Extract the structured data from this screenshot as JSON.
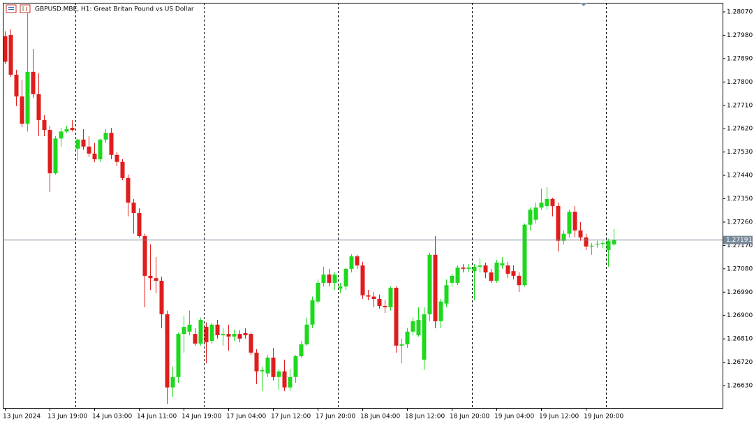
{
  "chart_data": {
    "type": "candlestick",
    "title": "GBPUSD.MBE, H1:  Great Britan Pound vs US Dollar",
    "categories": [
      "13 Jun 2024",
      null,
      null,
      null,
      null,
      null,
      null,
      null,
      "13 Jun 19:00",
      null,
      null,
      null,
      null,
      null,
      null,
      null,
      "14 Jun 03:00",
      null,
      null,
      null,
      null,
      null,
      null,
      null,
      "14 Jun 11:00",
      null,
      null,
      null,
      null,
      null,
      null,
      null,
      "14 Jun 19:00",
      null,
      null,
      null,
      null,
      null,
      null,
      null,
      "17 Jun 04:00",
      null,
      null,
      null,
      null,
      null,
      null,
      null,
      "17 Jun 12:00",
      null,
      null,
      null,
      null,
      null,
      null,
      null,
      "17 Jun 20:00",
      null,
      null,
      null,
      null,
      null,
      null,
      null,
      "18 Jun 04:00",
      null,
      null,
      null,
      null,
      null,
      null,
      null,
      "18 Jun 12:00",
      null,
      null,
      null,
      null,
      null,
      null,
      null,
      "18 Jun 20:00",
      null,
      null,
      null,
      null,
      null,
      null,
      null,
      "19 Jun 04:00",
      null,
      null,
      null,
      null,
      null,
      null,
      null,
      "19 Jun 12:00",
      null,
      null,
      null,
      null,
      null,
      null,
      null,
      "19 Jun 20:00",
      null,
      null,
      null,
      null,
      null
    ],
    "open": [
      1.27976,
      1.27981,
      1.27828,
      1.27744,
      1.27639,
      1.27839,
      1.27753,
      1.27653,
      1.27615,
      1.27448,
      1.27582,
      1.27609,
      1.27623,
      1.27543,
      1.27578,
      1.27551,
      1.27524,
      1.27502,
      1.27578,
      1.27604,
      1.27519,
      1.27492,
      1.2743,
      1.27335,
      1.27295,
      1.27206,
      1.27053,
      1.27044,
      1.27034,
      1.26905,
      1.26623,
      1.26663,
      1.26829,
      1.26838,
      1.26829,
      1.26792,
      1.26856,
      1.26802,
      1.26865,
      1.26824,
      1.26829,
      1.26819,
      1.26829,
      1.26832,
      1.26829,
      1.26757,
      1.26685,
      1.26677,
      1.26738,
      1.26663,
      1.26685,
      1.26623,
      1.26663,
      1.26743,
      1.26789,
      1.26865,
      1.26954,
      1.27026,
      1.27058,
      1.27026,
      1.27004,
      1.27012,
      1.2708,
      1.27128,
      1.27093,
      1.26978,
      1.26973,
      1.26964,
      1.26937,
      1.26932,
      1.27007,
      1.26784,
      1.26789,
      1.26838,
      1.26824,
      1.2673,
      1.26905,
      1.27134,
      1.26878,
      1.26946,
      1.27026,
      1.27026,
      1.27085,
      1.2708,
      1.27071,
      1.27088,
      1.27093,
      1.27066,
      1.27034,
      1.27093,
      1.27093,
      1.27071,
      1.27053,
      1.27017,
      1.2725,
      1.27269,
      1.27316,
      1.27322,
      1.27349,
      1.27322,
      1.27188,
      1.27215,
      1.273,
      1.27228,
      1.27201,
      1.27166,
      1.27174,
      1.27177,
      1.27152,
      1.27174
    ],
    "high": [
      1.27995,
      1.28003,
      1.27847,
      1.27807,
      1.28067,
      1.27927,
      1.27834,
      1.27672,
      1.27631,
      1.27591,
      1.27623,
      1.27631,
      1.27653,
      1.27582,
      1.27618,
      1.27591,
      1.27565,
      1.27582,
      1.27618,
      1.27623,
      1.27529,
      1.27502,
      1.27443,
      1.27349,
      1.27313,
      1.27215,
      1.27174,
      1.27125,
      1.2705,
      1.26919,
      1.26703,
      1.26835,
      1.269,
      1.26919,
      1.26851,
      1.26892,
      1.26873,
      1.26873,
      1.26883,
      1.26851,
      1.26865,
      1.26846,
      1.26843,
      1.26851,
      1.26835,
      1.2677,
      1.26703,
      1.26748,
      1.26775,
      1.26694,
      1.2673,
      1.26694,
      1.26748,
      1.26802,
      1.26892,
      1.26973,
      1.27039,
      1.27088,
      1.2708,
      1.27066,
      1.27026,
      1.27085,
      1.27136,
      1.27134,
      1.27107,
      1.26999,
      1.2699,
      1.26981,
      1.26959,
      1.27012,
      1.27012,
      1.26811,
      1.26851,
      1.26892,
      1.26932,
      1.26932,
      1.27142,
      1.27206,
      1.26964,
      1.27039,
      1.27061,
      1.27093,
      1.27098,
      1.27098,
      1.27098,
      1.2712,
      1.27104,
      1.2708,
      1.27115,
      1.27125,
      1.27107,
      1.27093,
      1.27066,
      1.27255,
      1.27316,
      1.27335,
      1.27389,
      1.27394,
      1.27354,
      1.27335,
      1.27228,
      1.27308,
      1.27322,
      1.2726,
      1.27215,
      1.27179,
      1.27188,
      1.27188,
      1.27196,
      1.27233
    ],
    "low": [
      1.27869,
      1.2782,
      1.27707,
      1.27626,
      1.27609,
      1.27739,
      1.27591,
      1.27591,
      1.27376,
      1.27443,
      1.27551,
      1.27604,
      1.27609,
      1.27497,
      1.27538,
      1.27511,
      1.27492,
      1.27492,
      1.27565,
      1.27502,
      1.27475,
      1.27421,
      1.27282,
      1.27215,
      1.27201,
      1.26932,
      1.26999,
      1.26986,
      1.26851,
      1.2656,
      1.26587,
      1.26641,
      1.26757,
      1.26824,
      1.26784,
      1.26784,
      1.26716,
      1.26792,
      1.26811,
      1.26784,
      1.26765,
      1.26802,
      1.26797,
      1.26811,
      1.26748,
      1.26636,
      1.26609,
      1.26663,
      1.2665,
      1.26614,
      1.26609,
      1.26609,
      1.26641,
      1.26738,
      1.26784,
      1.26851,
      1.26946,
      1.27012,
      1.27012,
      1.26999,
      1.26986,
      1.26999,
      1.27066,
      1.2708,
      1.26964,
      1.26959,
      1.26932,
      1.26927,
      1.2691,
      1.26919,
      1.26757,
      1.26716,
      1.26775,
      1.26824,
      1.26819,
      1.2669,
      1.26878,
      1.26851,
      1.26851,
      1.26932,
      1.27012,
      1.27017,
      1.27066,
      1.27066,
      1.26959,
      1.27066,
      1.27044,
      1.27026,
      1.27026,
      1.2708,
      1.27044,
      1.27039,
      1.2699,
      1.27012,
      1.27228,
      1.27255,
      1.27308,
      1.27308,
      1.27282,
      1.27147,
      1.27174,
      1.27201,
      1.27201,
      1.27188,
      1.27152,
      1.27134,
      1.27161,
      1.27161,
      1.27088,
      1.27169
    ],
    "close": [
      1.27878,
      1.27828,
      1.27744,
      1.27639,
      1.27839,
      1.27753,
      1.27653,
      1.27615,
      1.27448,
      1.27582,
      1.27609,
      1.27618,
      1.27615,
      1.27578,
      1.27551,
      1.27524,
      1.27502,
      1.27578,
      1.27604,
      1.27519,
      1.27492,
      1.2743,
      1.27335,
      1.27295,
      1.27206,
      1.27053,
      1.27044,
      1.27034,
      1.26905,
      1.26623,
      1.26663,
      1.26829,
      1.26856,
      1.26865,
      1.26792,
      1.26883,
      1.26797,
      1.26865,
      1.26824,
      1.26829,
      1.26819,
      1.26829,
      1.26811,
      1.26824,
      1.26757,
      1.26685,
      1.2669,
      1.26738,
      1.26663,
      1.26685,
      1.26623,
      1.26663,
      1.26743,
      1.26789,
      1.26865,
      1.26959,
      1.27026,
      1.27058,
      1.27026,
      1.27058,
      1.27012,
      1.2708,
      1.27128,
      1.27093,
      1.26978,
      1.26973,
      1.26964,
      1.26937,
      1.26932,
      1.27007,
      1.26784,
      1.26789,
      1.26838,
      1.26878,
      1.26883,
      1.26905,
      1.27134,
      1.26878,
      1.26954,
      1.27017,
      1.27053,
      1.27085,
      1.2708,
      1.27085,
      1.27088,
      1.27093,
      1.27066,
      1.27034,
      1.27104,
      1.27101,
      1.27061,
      1.27053,
      1.27017,
      1.2725,
      1.27308,
      1.27316,
      1.27335,
      1.27349,
      1.27322,
      1.27188,
      1.27215,
      1.273,
      1.27228,
      1.27201,
      1.27166,
      1.27169,
      1.27177,
      1.27179,
      1.27188,
      1.27191
    ],
    "up_color": "#1ed81e",
    "down_color": "#e01c1c",
    "ylim": [
      1.26544,
      1.28105
    ],
    "yticks": [
      {
        "value": 1.2807,
        "label": "1.28070"
      },
      {
        "value": 1.2798,
        "label": "1.27980"
      },
      {
        "value": 1.2789,
        "label": "1.27890"
      },
      {
        "value": 1.278,
        "label": "1.27800"
      },
      {
        "value": 1.2771,
        "label": "1.27710"
      },
      {
        "value": 1.2762,
        "label": "1.27620"
      },
      {
        "value": 1.2753,
        "label": "1.27530"
      },
      {
        "value": 1.2744,
        "label": "1.27440"
      },
      {
        "value": 1.2735,
        "label": "1.27350"
      },
      {
        "value": 1.2726,
        "label": "1.27260"
      },
      {
        "value": 1.2717,
        "label": "1.27170"
      },
      {
        "value": 1.2708,
        "label": "1.27080"
      },
      {
        "value": 1.2699,
        "label": "1.26990"
      },
      {
        "value": 1.269,
        "label": "1.26900"
      },
      {
        "value": 1.2681,
        "label": "1.26810"
      },
      {
        "value": 1.2672,
        "label": "1.26720"
      },
      {
        "value": 1.2663,
        "label": "1.26630"
      }
    ],
    "current_price": 1.27191,
    "grid": false
  }
}
